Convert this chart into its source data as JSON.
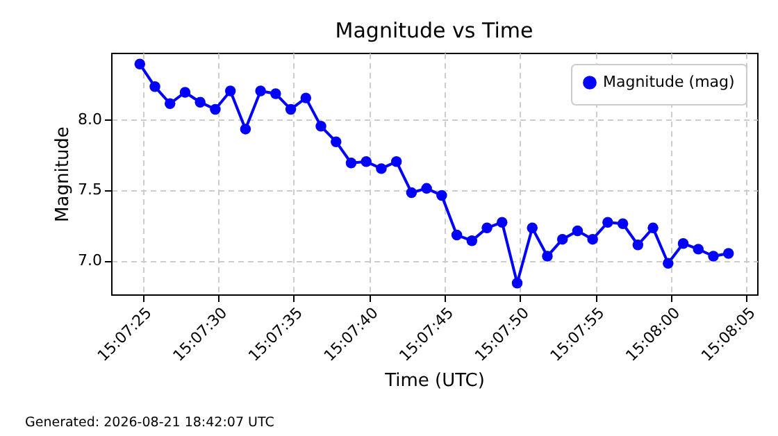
{
  "chart_data": {
    "type": "line",
    "title": "Magnitude vs Time",
    "xlabel": "Time (UTC)",
    "ylabel": "Magnitude",
    "x": [
      "2026-08-21T15:07:24.8",
      "2026-08-21T15:07:25.8",
      "2026-08-21T15:07:26.8",
      "2026-08-21T15:07:27.8",
      "2026-08-21T15:07:28.8",
      "2026-08-21T15:07:29.8",
      "2026-08-21T15:07:30.8",
      "2026-08-21T15:07:31.8",
      "2026-08-21T15:07:32.8",
      "2026-08-21T15:07:33.8",
      "2026-08-21T15:07:34.8",
      "2026-08-21T15:07:35.8",
      "2026-08-21T15:07:36.8",
      "2026-08-21T15:07:37.8",
      "2026-08-21T15:07:38.8",
      "2026-08-21T15:07:39.8",
      "2026-08-21T15:07:40.8",
      "2026-08-21T15:07:41.8",
      "2026-08-21T15:07:42.8",
      "2026-08-21T15:07:43.8",
      "2026-08-21T15:07:44.8",
      "2026-08-21T15:07:45.8",
      "2026-08-21T15:07:46.8",
      "2026-08-21T15:07:47.8",
      "2026-08-21T15:07:48.8",
      "2026-08-21T15:07:49.8",
      "2026-08-21T15:07:50.8",
      "2026-08-21T15:07:51.8",
      "2026-08-21T15:07:52.8",
      "2026-08-21T15:07:53.8",
      "2026-08-21T15:07:54.8",
      "2026-08-21T15:07:55.8",
      "2026-08-21T15:07:56.8",
      "2026-08-21T15:07:57.8",
      "2026-08-21T15:07:58.8",
      "2026-08-21T15:07:59.8",
      "2026-08-21T15:08:00.8",
      "2026-08-21T15:08:01.8",
      "2026-08-21T15:08:02.8",
      "2026-08-21T15:08:03.8"
    ],
    "series": [
      {
        "name": "Magnitude (mag)",
        "color": "#0000ff",
        "values": [
          8.39,
          8.23,
          8.11,
          8.19,
          8.12,
          8.07,
          8.2,
          7.93,
          8.2,
          8.18,
          8.07,
          8.15,
          7.95,
          7.84,
          7.69,
          7.7,
          7.65,
          7.7,
          7.48,
          7.51,
          7.46,
          7.18,
          7.14,
          7.23,
          7.27,
          6.84,
          7.23,
          7.03,
          7.15,
          7.21,
          7.15,
          7.27,
          7.26,
          7.11,
          7.23,
          6.98,
          7.12,
          7.08,
          7.03,
          7.05
        ]
      }
    ],
    "xlim": [
      "2026-08-21T15:07:22.9",
      "2026-08-21T15:08:05.7"
    ],
    "xticks": [
      {
        "value": "2026-08-21T15:07:25",
        "label": "15:07:25"
      },
      {
        "value": "2026-08-21T15:07:30",
        "label": "15:07:30"
      },
      {
        "value": "2026-08-21T15:07:35",
        "label": "15:07:35"
      },
      {
        "value": "2026-08-21T15:07:40",
        "label": "15:07:40"
      },
      {
        "value": "2026-08-21T15:07:45",
        "label": "15:07:45"
      },
      {
        "value": "2026-08-21T15:07:50",
        "label": "15:07:50"
      },
      {
        "value": "2026-08-21T15:07:55",
        "label": "15:07:55"
      },
      {
        "value": "2026-08-21T15:08:00",
        "label": "15:08:00"
      },
      {
        "value": "2026-08-21T15:08:05",
        "label": "15:08:05"
      }
    ],
    "ylim": [
      6.76,
      8.47
    ],
    "yticks": [
      {
        "value": 7.0,
        "label": "7.0"
      },
      {
        "value": 7.5,
        "label": "7.5"
      },
      {
        "value": 8.0,
        "label": "8.0"
      }
    ],
    "grid": true,
    "legend": "top right",
    "marker": "circle",
    "line_style": "solid",
    "annotations": [
      "Generated: 2026-08-21 18:42:07 UTC"
    ]
  }
}
